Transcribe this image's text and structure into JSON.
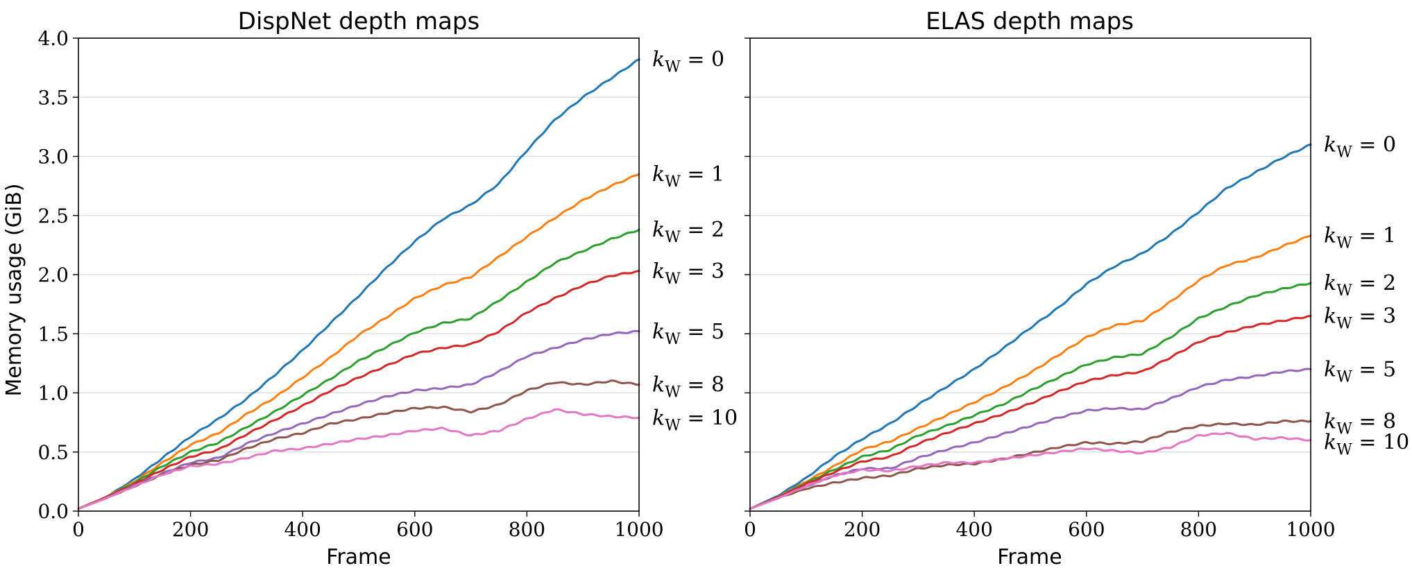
{
  "chart_data": [
    {
      "type": "line",
      "title": "DispNet depth maps",
      "xlabel": "Frame",
      "ylabel": "Memory usage (GiB)",
      "xlim": [
        0,
        1000
      ],
      "ylim": [
        0,
        4.0
      ],
      "xticks": [
        "0",
        "200",
        "400",
        "600",
        "800",
        "1000"
      ],
      "yticks": [
        "0.0",
        "0.5",
        "1.0",
        "1.5",
        "2.0",
        "2.5",
        "3.0",
        "3.5",
        "4.0"
      ],
      "grid": "horizontal",
      "x": [
        0,
        50,
        100,
        150,
        200,
        250,
        300,
        350,
        400,
        450,
        500,
        550,
        600,
        650,
        700,
        750,
        800,
        850,
        900,
        950,
        1000
      ],
      "series": [
        {
          "name": "k",
          "sub": "W",
          "val": "0",
          "color": "#1f77b4",
          "values": [
            0.02,
            0.12,
            0.27,
            0.45,
            0.63,
            0.78,
            0.95,
            1.15,
            1.36,
            1.59,
            1.82,
            2.06,
            2.28,
            2.47,
            2.59,
            2.77,
            3.05,
            3.31,
            3.5,
            3.66,
            3.82
          ]
        },
        {
          "name": "k",
          "sub": "W",
          "val": "1",
          "color": "#ff7f0e",
          "values": [
            0.02,
            0.12,
            0.25,
            0.41,
            0.56,
            0.66,
            0.82,
            0.96,
            1.13,
            1.3,
            1.49,
            1.64,
            1.8,
            1.91,
            1.98,
            2.15,
            2.32,
            2.48,
            2.63,
            2.75,
            2.85
          ]
        },
        {
          "name": "k",
          "sub": "W",
          "val": "2",
          "color": "#2ca02c",
          "values": [
            0.02,
            0.12,
            0.24,
            0.38,
            0.5,
            0.58,
            0.71,
            0.84,
            0.98,
            1.12,
            1.27,
            1.39,
            1.51,
            1.59,
            1.63,
            1.78,
            1.94,
            2.1,
            2.2,
            2.3,
            2.38
          ]
        },
        {
          "name": "k",
          "sub": "W",
          "val": "3",
          "color": "#d62728",
          "values": [
            0.02,
            0.12,
            0.23,
            0.35,
            0.46,
            0.52,
            0.65,
            0.77,
            0.89,
            1.02,
            1.13,
            1.23,
            1.33,
            1.38,
            1.41,
            1.52,
            1.68,
            1.8,
            1.91,
            1.99,
            2.03
          ]
        },
        {
          "name": "k",
          "sub": "W",
          "val": "5",
          "color": "#9467bd",
          "values": [
            0.02,
            0.11,
            0.22,
            0.32,
            0.41,
            0.45,
            0.57,
            0.66,
            0.74,
            0.82,
            0.9,
            0.97,
            1.02,
            1.04,
            1.07,
            1.18,
            1.31,
            1.38,
            1.45,
            1.5,
            1.52
          ]
        },
        {
          "name": "k",
          "sub": "W",
          "val": "8",
          "color": "#8c564b",
          "values": [
            0.02,
            0.11,
            0.21,
            0.31,
            0.39,
            0.43,
            0.53,
            0.61,
            0.66,
            0.74,
            0.78,
            0.83,
            0.87,
            0.88,
            0.84,
            0.9,
            1.02,
            1.09,
            1.07,
            1.1,
            1.07
          ]
        },
        {
          "name": "k",
          "sub": "W",
          "val": "10",
          "color": "#e377c2",
          "values": [
            0.02,
            0.11,
            0.21,
            0.31,
            0.38,
            0.4,
            0.45,
            0.51,
            0.53,
            0.57,
            0.61,
            0.64,
            0.68,
            0.7,
            0.64,
            0.68,
            0.78,
            0.86,
            0.82,
            0.8,
            0.79
          ]
        }
      ]
    },
    {
      "type": "line",
      "title": "ELAS depth maps",
      "xlabel": "Frame",
      "ylabel": "",
      "xlim": [
        0,
        1000
      ],
      "ylim": [
        0,
        4.0
      ],
      "xticks": [
        "0",
        "200",
        "400",
        "600",
        "800",
        "1000"
      ],
      "yticks": [
        "",
        "",
        "",
        "",
        "",
        "",
        "",
        "",
        ""
      ],
      "grid": "horizontal",
      "x": [
        0,
        50,
        100,
        150,
        200,
        250,
        300,
        350,
        400,
        450,
        500,
        550,
        600,
        650,
        700,
        750,
        800,
        850,
        900,
        950,
        1000
      ],
      "series": [
        {
          "name": "k",
          "sub": "W",
          "val": "0",
          "color": "#1f77b4",
          "values": [
            0.02,
            0.13,
            0.28,
            0.46,
            0.61,
            0.74,
            0.9,
            1.05,
            1.2,
            1.37,
            1.55,
            1.72,
            1.92,
            2.07,
            2.18,
            2.34,
            2.53,
            2.73,
            2.86,
            2.99,
            3.1
          ]
        },
        {
          "name": "k",
          "sub": "W",
          "val": "1",
          "color": "#ff7f0e",
          "values": [
            0.02,
            0.12,
            0.25,
            0.38,
            0.52,
            0.59,
            0.7,
            0.81,
            0.92,
            1.04,
            1.17,
            1.32,
            1.47,
            1.57,
            1.61,
            1.77,
            1.95,
            2.08,
            2.14,
            2.24,
            2.33
          ]
        },
        {
          "name": "k",
          "sub": "W",
          "val": "2",
          "color": "#2ca02c",
          "values": [
            0.02,
            0.12,
            0.24,
            0.35,
            0.46,
            0.52,
            0.64,
            0.72,
            0.81,
            0.9,
            1.02,
            1.13,
            1.24,
            1.3,
            1.33,
            1.47,
            1.63,
            1.73,
            1.82,
            1.88,
            1.93
          ]
        },
        {
          "name": "k",
          "sub": "W",
          "val": "3",
          "color": "#d62728",
          "values": [
            0.02,
            0.12,
            0.23,
            0.33,
            0.42,
            0.46,
            0.57,
            0.66,
            0.74,
            0.82,
            0.91,
            1.01,
            1.1,
            1.15,
            1.18,
            1.3,
            1.43,
            1.51,
            1.57,
            1.61,
            1.65
          ]
        },
        {
          "name": "k",
          "sub": "W",
          "val": "5",
          "color": "#9467bd",
          "values": [
            0.02,
            0.11,
            0.21,
            0.3,
            0.36,
            0.36,
            0.45,
            0.52,
            0.58,
            0.65,
            0.72,
            0.79,
            0.85,
            0.87,
            0.86,
            0.95,
            1.05,
            1.11,
            1.14,
            1.18,
            1.2
          ]
        },
        {
          "name": "k",
          "sub": "W",
          "val": "8",
          "color": "#8c564b",
          "values": [
            0.02,
            0.11,
            0.19,
            0.24,
            0.28,
            0.3,
            0.36,
            0.39,
            0.4,
            0.44,
            0.49,
            0.54,
            0.58,
            0.57,
            0.59,
            0.67,
            0.72,
            0.74,
            0.73,
            0.76,
            0.76
          ]
        },
        {
          "name": "k",
          "sub": "W",
          "val": "10",
          "color": "#e377c2",
          "values": [
            0.02,
            0.11,
            0.21,
            0.3,
            0.35,
            0.34,
            0.38,
            0.41,
            0.41,
            0.44,
            0.47,
            0.5,
            0.53,
            0.51,
            0.49,
            0.54,
            0.64,
            0.66,
            0.61,
            0.62,
            0.6
          ]
        }
      ]
    }
  ]
}
